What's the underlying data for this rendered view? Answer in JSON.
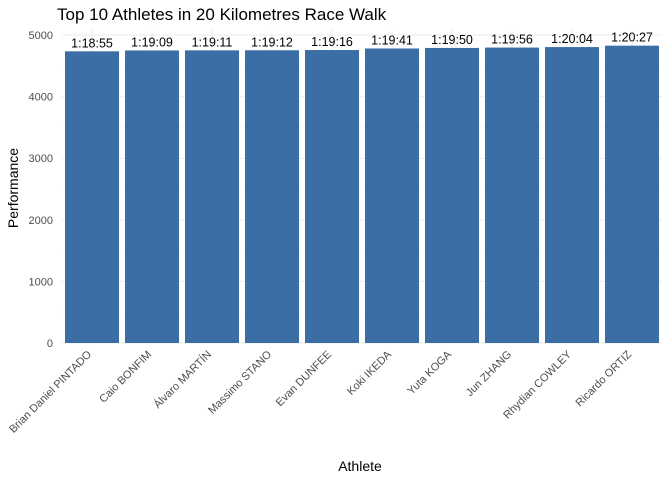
{
  "chart_data": {
    "type": "bar",
    "title": "Top 10 Athletes in 20 Kilometres Race Walk",
    "xlabel": "Athlete",
    "ylabel": "Performance",
    "categories": [
      "Brian Daniel PINTADO",
      "Caio BONFIM",
      "Álvaro MARTÍN",
      "Massimo STANO",
      "Evan DUNFEE",
      "Koki IKEDA",
      "Yuta KOGA",
      "Jun ZHANG",
      "Rhydian COWLEY",
      "Ricardo ORTIZ"
    ],
    "values": [
      4735,
      4749,
      4751,
      4752,
      4756,
      4781,
      4790,
      4796,
      4804,
      4827
    ],
    "data_labels": [
      "1:18:55",
      "1:19:09",
      "1:19:11",
      "1:19:12",
      "1:19:16",
      "1:19:41",
      "1:19:50",
      "1:19:56",
      "1:20:04",
      "1:20:27"
    ],
    "ylim": [
      0,
      5000
    ],
    "yticks": [
      0,
      1000,
      2000,
      3000,
      4000,
      5000
    ],
    "bar_color": "#3a6ea5",
    "grid": true,
    "legend": "none"
  }
}
